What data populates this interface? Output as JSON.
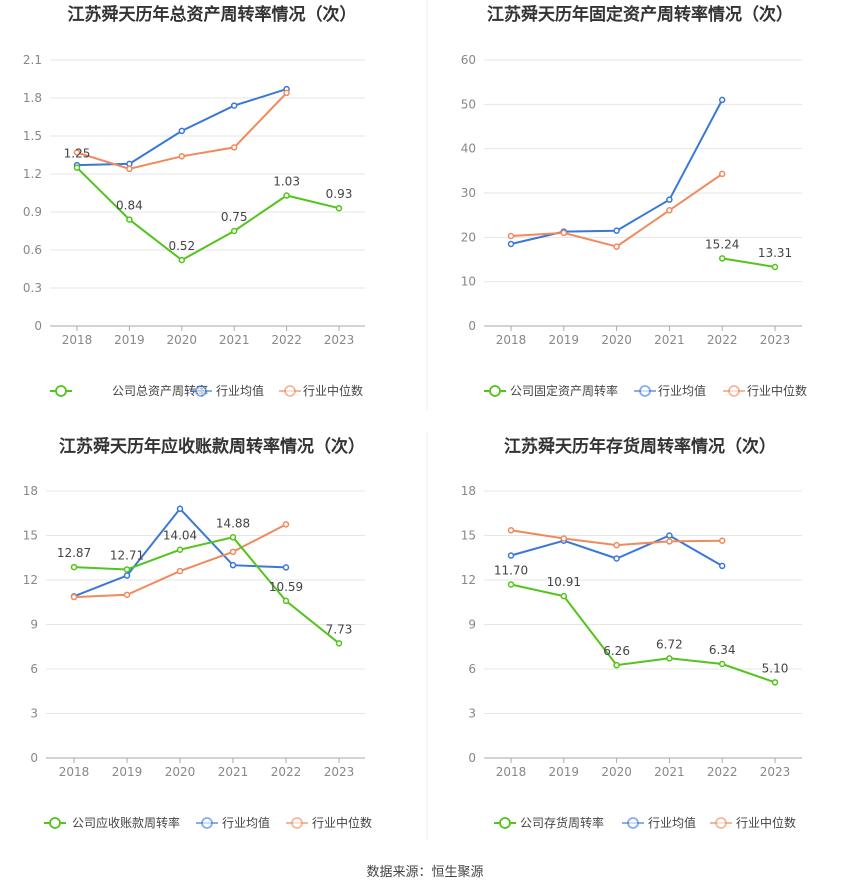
{
  "colors": {
    "company": "#52c41a",
    "industry_avg": "#3a78d8",
    "industry_median": "#f08a5d"
  },
  "source": "数据来源：恒生聚源",
  "chart_data": [
    {
      "type": "line",
      "title": "江苏舜天历年总资产周转率情况（次）",
      "categories": [
        "2018",
        "2019",
        "2020",
        "2021",
        "2022",
        "2023"
      ],
      "ylim": [
        0,
        2.1
      ],
      "yticks": [
        "0",
        "0.3",
        "0.6",
        "0.9",
        "1.2",
        "1.5",
        "1.8",
        "2.1"
      ],
      "series": [
        {
          "name": "公司总资产周转率",
          "role": "company",
          "values": [
            1.25,
            0.84,
            0.52,
            0.75,
            1.03,
            0.93
          ],
          "labels": [
            "1.25",
            "0.84",
            "0.52",
            "0.75",
            "1.03",
            "0.93"
          ]
        },
        {
          "name": "行业均值",
          "role": "industry_avg",
          "values": [
            1.27,
            1.28,
            1.54,
            1.74,
            1.87,
            null
          ]
        },
        {
          "name": "行业中位数",
          "role": "industry_median",
          "values": [
            1.37,
            1.24,
            1.34,
            1.41,
            1.84,
            null
          ]
        }
      ]
    },
    {
      "type": "line",
      "title": "江苏舜天历年固定资产周转率情况（次）",
      "categories": [
        "2018",
        "2019",
        "2020",
        "2021",
        "2022",
        "2023"
      ],
      "ylim": [
        0,
        60
      ],
      "yticks": [
        "0",
        "10",
        "20",
        "30",
        "40",
        "50",
        "60"
      ],
      "series": [
        {
          "name": "公司固定资产周转率",
          "role": "company",
          "values": [
            null,
            null,
            null,
            null,
            15.24,
            13.31
          ],
          "labels": [
            null,
            null,
            null,
            null,
            "15.24",
            "13.31"
          ]
        },
        {
          "name": "行业均值",
          "role": "industry_avg",
          "values": [
            18.5,
            21.3,
            21.5,
            28.5,
            51.0,
            null
          ]
        },
        {
          "name": "行业中位数",
          "role": "industry_median",
          "values": [
            20.3,
            21.0,
            17.9,
            26.1,
            34.3,
            null
          ]
        }
      ]
    },
    {
      "type": "line",
      "title": "江苏舜天历年应收账款周转率情况（次）",
      "categories": [
        "2018",
        "2019",
        "2020",
        "2021",
        "2022",
        "2023"
      ],
      "ylim": [
        0,
        18
      ],
      "yticks": [
        "0",
        "3",
        "6",
        "9",
        "12",
        "15",
        "18"
      ],
      "series": [
        {
          "name": "公司应收账款周转率",
          "role": "company",
          "values": [
            12.87,
            12.71,
            14.04,
            14.88,
            10.59,
            7.73
          ],
          "labels": [
            "12.87",
            "12.71",
            "14.04",
            "14.88",
            "10.59",
            "7.73"
          ]
        },
        {
          "name": "行业均值",
          "role": "industry_avg",
          "values": [
            10.9,
            12.3,
            16.8,
            13.0,
            12.85,
            null
          ]
        },
        {
          "name": "行业中位数",
          "role": "industry_median",
          "values": [
            10.85,
            11.0,
            12.6,
            13.9,
            15.75,
            null
          ]
        }
      ]
    },
    {
      "type": "line",
      "title": "江苏舜天历年存货周转率情况（次）",
      "categories": [
        "2018",
        "2019",
        "2020",
        "2021",
        "2022",
        "2023"
      ],
      "ylim": [
        0,
        18
      ],
      "yticks": [
        "0",
        "3",
        "6",
        "9",
        "12",
        "15",
        "18"
      ],
      "series": [
        {
          "name": "公司存货周转率",
          "role": "company",
          "values": [
            11.7,
            10.91,
            6.26,
            6.72,
            6.34,
            5.1
          ],
          "labels": [
            "11.70",
            "10.91",
            "6.26",
            "6.72",
            "6.34",
            "5.10"
          ]
        },
        {
          "name": "行业均值",
          "role": "industry_avg",
          "values": [
            13.65,
            14.65,
            13.45,
            15.0,
            12.95,
            null
          ]
        },
        {
          "name": "行业中位数",
          "role": "industry_median",
          "values": [
            15.35,
            14.8,
            14.35,
            14.6,
            14.65,
            null
          ]
        }
      ]
    }
  ]
}
